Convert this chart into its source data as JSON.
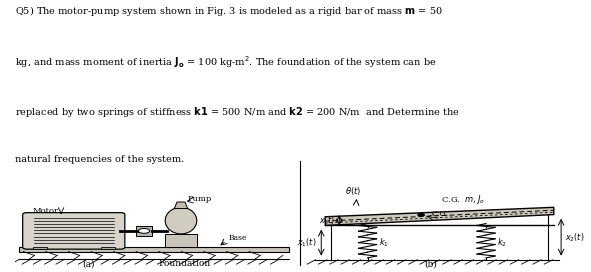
{
  "bg_color": "#ffffff",
  "text_color": "#000000",
  "diagram_bg": "#f0ede8",
  "line1": "Q5) The motor-pump system shown in Fig. 3 is modeled as a rigid bar of mass $\\mathbf{m}$ = 50",
  "line2": "kg, and mass moment of inertia $\\mathbf{J_o}$ = 100 kg-m$^2$. The foundation of the system can be",
  "line3": "replaced by two springs of stiffness $\\mathbf{k1}$ = 500 N/m and $\\mathbf{k2}$ = 200 N/m  and Determine the",
  "line4": "natural frequencies of the system."
}
